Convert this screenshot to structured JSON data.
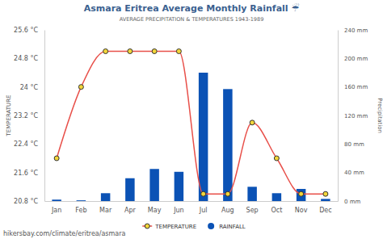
{
  "chart_data": {
    "type": "bar",
    "title": "Asmara Eritrea Average Monthly Rainfall ☔",
    "subtitle": "AVERAGE PRECIPITATION & TEMPERATURES 1943-1989",
    "y_label": "TEMPERATURE",
    "y2_label": "Precipitation",
    "footer": "hikersbay.com/climate/eritrea/asmara",
    "categories": [
      "Jan",
      "Feb",
      "Mar",
      "Apr",
      "May",
      "Jun",
      "Jul",
      "Aug",
      "Sep",
      "Oct",
      "Nov",
      "Dec"
    ],
    "series": [
      {
        "name": "TEMPERATURE",
        "type": "line",
        "axis": "y",
        "color": "#e8504a",
        "marker": "circle",
        "values": [
          22.0,
          24.0,
          25.0,
          25.0,
          25.0,
          25.0,
          21.0,
          21.0,
          23.0,
          22.0,
          21.0,
          21.0
        ]
      },
      {
        "name": "RAINFALL",
        "type": "bar",
        "axis": "y2",
        "color": "#0b52b5",
        "values": [
          2,
          1,
          11,
          32,
          45,
          41,
          180,
          157,
          20,
          11,
          17,
          3
        ]
      }
    ],
    "ylim": [
      20.8,
      25.6
    ],
    "yticks": [
      {
        "value": 20.8,
        "label": "20.8 °C"
      },
      {
        "value": 21.6,
        "label": "21.6 °C"
      },
      {
        "value": 22.4,
        "label": "22.4 °C"
      },
      {
        "value": 23.2,
        "label": "23.2 °C"
      },
      {
        "value": 24,
        "label": "24 °C"
      },
      {
        "value": 24.8,
        "label": "24.8 °C"
      },
      {
        "value": 25.6,
        "label": "25.6 °C"
      }
    ],
    "y2lim": [
      0,
      240
    ],
    "y2ticks": [
      {
        "value": 0,
        "label": "0 mm"
      },
      {
        "value": 40,
        "label": "40 mm"
      },
      {
        "value": 80,
        "label": "80 mm"
      },
      {
        "value": 120,
        "label": "120 mm"
      },
      {
        "value": 160,
        "label": "160 mm"
      },
      {
        "value": 200,
        "label": "200 mm"
      },
      {
        "value": 240,
        "label": "240 mm"
      }
    ],
    "grid": false,
    "legend": "bottom"
  }
}
